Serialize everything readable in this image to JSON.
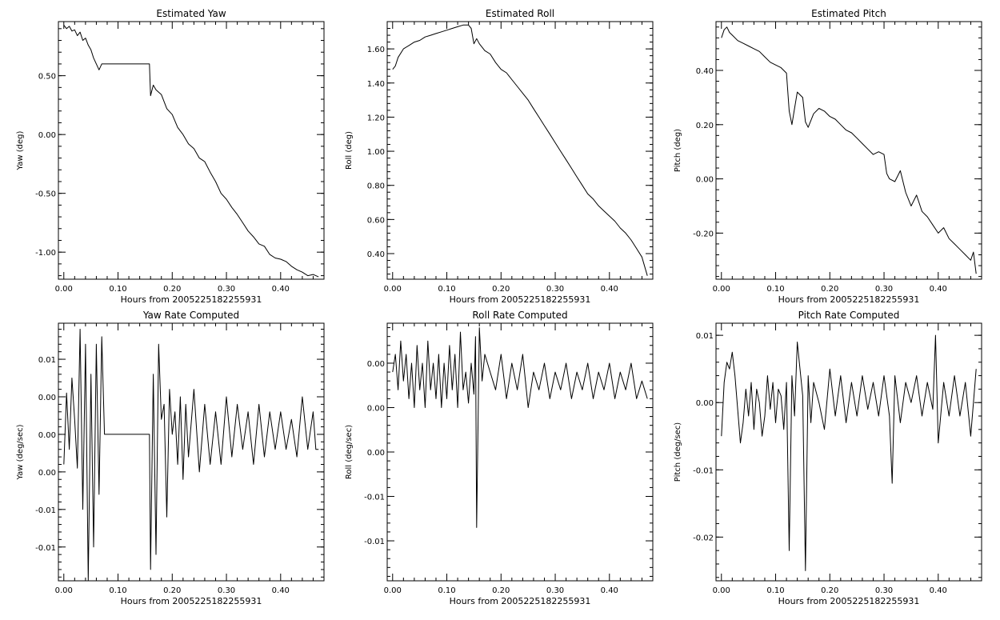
{
  "figure": {
    "background": "#ffffff",
    "line_color": "#000000"
  },
  "chart_data": [
    {
      "type": "line",
      "title": "Estimated Yaw",
      "xlabel": "Hours from 2005225182255931",
      "ylabel": "Yaw (deg)",
      "xlim": [
        -0.01,
        0.48
      ],
      "ylim": [
        -1.23,
        0.96
      ],
      "xticks": [
        0.0,
        0.1,
        0.2,
        0.3,
        0.4
      ],
      "xtick_labels": [
        "0.00",
        "0.10",
        "0.20",
        "0.30",
        "0.40"
      ],
      "yticks": [
        0.5,
        0.0,
        -0.5,
        -1.0
      ],
      "ytick_labels": [
        "0.50",
        "0.00",
        "-0.50",
        "-1.00"
      ],
      "grid": false,
      "x": [
        0.0,
        0.005,
        0.01,
        0.015,
        0.02,
        0.025,
        0.03,
        0.035,
        0.04,
        0.045,
        0.05,
        0.055,
        0.06,
        0.065,
        0.07,
        0.08,
        0.1,
        0.12,
        0.14,
        0.158,
        0.16,
        0.165,
        0.17,
        0.18,
        0.19,
        0.2,
        0.21,
        0.22,
        0.23,
        0.24,
        0.25,
        0.26,
        0.27,
        0.28,
        0.29,
        0.3,
        0.31,
        0.32,
        0.33,
        0.34,
        0.35,
        0.36,
        0.37,
        0.38,
        0.39,
        0.4,
        0.41,
        0.42,
        0.43,
        0.44,
        0.45,
        0.46,
        0.47
      ],
      "y": [
        0.93,
        0.9,
        0.92,
        0.88,
        0.89,
        0.84,
        0.87,
        0.8,
        0.82,
        0.76,
        0.72,
        0.65,
        0.6,
        0.55,
        0.6,
        0.6,
        0.6,
        0.6,
        0.6,
        0.6,
        0.33,
        0.42,
        0.38,
        0.34,
        0.22,
        0.17,
        0.06,
        0.0,
        -0.08,
        -0.12,
        -0.2,
        -0.23,
        -0.32,
        -0.4,
        -0.5,
        -0.55,
        -0.62,
        -0.68,
        -0.75,
        -0.82,
        -0.87,
        -0.93,
        -0.95,
        -1.02,
        -1.05,
        -1.06,
        -1.08,
        -1.12,
        -1.15,
        -1.17,
        -1.2,
        -1.19,
        -1.21
      ]
    },
    {
      "type": "line",
      "title": "Estimated Roll",
      "xlabel": "Hours from 2005225182255931",
      "ylabel": "Roll (deg)",
      "xlim": [
        -0.01,
        0.48
      ],
      "ylim": [
        0.25,
        1.76
      ],
      "xticks": [
        0.0,
        0.1,
        0.2,
        0.3,
        0.4
      ],
      "xtick_labels": [
        "0.00",
        "0.10",
        "0.20",
        "0.30",
        "0.40"
      ],
      "yticks": [
        1.6,
        1.4,
        1.2,
        1.0,
        0.8,
        0.6,
        0.4
      ],
      "ytick_labels": [
        "1.60",
        "1.40",
        "1.20",
        "1.00",
        "0.80",
        "0.60",
        "0.40"
      ],
      "grid": false,
      "x": [
        0.0,
        0.005,
        0.01,
        0.02,
        0.03,
        0.04,
        0.05,
        0.06,
        0.07,
        0.08,
        0.09,
        0.1,
        0.11,
        0.12,
        0.13,
        0.14,
        0.145,
        0.15,
        0.155,
        0.16,
        0.17,
        0.18,
        0.19,
        0.2,
        0.21,
        0.22,
        0.23,
        0.24,
        0.25,
        0.26,
        0.27,
        0.28,
        0.29,
        0.3,
        0.31,
        0.32,
        0.33,
        0.34,
        0.35,
        0.36,
        0.37,
        0.38,
        0.39,
        0.4,
        0.41,
        0.42,
        0.43,
        0.44,
        0.45,
        0.46,
        0.47
      ],
      "y": [
        1.48,
        1.5,
        1.55,
        1.6,
        1.62,
        1.64,
        1.65,
        1.67,
        1.68,
        1.69,
        1.7,
        1.71,
        1.72,
        1.73,
        1.74,
        1.74,
        1.72,
        1.63,
        1.66,
        1.63,
        1.59,
        1.57,
        1.52,
        1.48,
        1.46,
        1.42,
        1.38,
        1.34,
        1.3,
        1.25,
        1.2,
        1.15,
        1.1,
        1.05,
        1.0,
        0.95,
        0.9,
        0.85,
        0.8,
        0.75,
        0.72,
        0.68,
        0.65,
        0.62,
        0.59,
        0.55,
        0.52,
        0.48,
        0.43,
        0.38,
        0.27
      ]
    },
    {
      "type": "line",
      "title": "Estimated Pitch",
      "xlabel": "Hours from 2005225182255931",
      "ylabel": "Pitch (deg)",
      "xlim": [
        -0.01,
        0.48
      ],
      "ylim": [
        -0.37,
        0.58
      ],
      "xticks": [
        0.0,
        0.1,
        0.2,
        0.3,
        0.4
      ],
      "xtick_labels": [
        "0.00",
        "0.10",
        "0.20",
        "0.30",
        "0.40"
      ],
      "yticks": [
        0.4,
        0.2,
        0.0,
        -0.2
      ],
      "ytick_labels": [
        "0.40",
        "0.20",
        "0.00",
        "-0.20"
      ],
      "grid": false,
      "x": [
        0.0,
        0.005,
        0.01,
        0.015,
        0.02,
        0.03,
        0.04,
        0.05,
        0.06,
        0.07,
        0.08,
        0.09,
        0.1,
        0.11,
        0.12,
        0.125,
        0.13,
        0.135,
        0.14,
        0.145,
        0.15,
        0.155,
        0.16,
        0.17,
        0.18,
        0.19,
        0.2,
        0.21,
        0.22,
        0.23,
        0.24,
        0.25,
        0.26,
        0.27,
        0.28,
        0.29,
        0.3,
        0.305,
        0.31,
        0.32,
        0.33,
        0.34,
        0.35,
        0.36,
        0.37,
        0.38,
        0.39,
        0.4,
        0.41,
        0.42,
        0.43,
        0.44,
        0.45,
        0.46,
        0.465,
        0.47
      ],
      "y": [
        0.52,
        0.55,
        0.56,
        0.54,
        0.53,
        0.51,
        0.5,
        0.49,
        0.48,
        0.47,
        0.45,
        0.43,
        0.42,
        0.41,
        0.39,
        0.25,
        0.2,
        0.26,
        0.32,
        0.31,
        0.3,
        0.21,
        0.19,
        0.24,
        0.26,
        0.25,
        0.23,
        0.22,
        0.2,
        0.18,
        0.17,
        0.15,
        0.13,
        0.11,
        0.09,
        0.1,
        0.09,
        0.02,
        0.0,
        -0.01,
        0.03,
        -0.05,
        -0.1,
        -0.06,
        -0.12,
        -0.14,
        -0.17,
        -0.2,
        -0.18,
        -0.22,
        -0.24,
        -0.26,
        -0.28,
        -0.3,
        -0.27,
        -0.35
      ]
    },
    {
      "type": "line",
      "title": "Yaw Rate Computed",
      "xlabel": "Hours from 2005225182255931",
      "ylabel": "Yaw (deg/sec)",
      "xlim": [
        -0.01,
        0.48
      ],
      "ylim": [
        -0.0195,
        0.0148
      ],
      "xticks": [
        0.0,
        0.1,
        0.2,
        0.3,
        0.4
      ],
      "xtick_labels": [
        "0.00",
        "0.10",
        "0.20",
        "0.30",
        "0.40"
      ],
      "yticks": [
        0.01,
        0.005,
        0.0,
        -0.005,
        -0.01,
        -0.015
      ],
      "ytick_labels": [
        "0.01",
        "0.00",
        "0.00",
        "0.00",
        "-0.01",
        "-0.01"
      ],
      "grid": false,
      "x": [
        0.0,
        0.005,
        0.01,
        0.015,
        0.02,
        0.025,
        0.03,
        0.035,
        0.04,
        0.045,
        0.05,
        0.055,
        0.06,
        0.065,
        0.07,
        0.075,
        0.1,
        0.13,
        0.158,
        0.16,
        0.165,
        0.17,
        0.175,
        0.18,
        0.185,
        0.19,
        0.195,
        0.2,
        0.205,
        0.21,
        0.215,
        0.22,
        0.225,
        0.23,
        0.24,
        0.25,
        0.26,
        0.27,
        0.28,
        0.29,
        0.3,
        0.31,
        0.32,
        0.33,
        0.34,
        0.35,
        0.36,
        0.37,
        0.38,
        0.39,
        0.4,
        0.41,
        0.42,
        0.43,
        0.44,
        0.45,
        0.46,
        0.465,
        0.47
      ],
      "y": [
        -0.004,
        0.0055,
        -0.002,
        0.0075,
        0.002,
        -0.0045,
        0.014,
        -0.01,
        0.012,
        -0.0195,
        0.008,
        -0.015,
        0.012,
        -0.008,
        0.013,
        0.0,
        0.0,
        0.0,
        0.0,
        -0.018,
        0.008,
        -0.016,
        0.012,
        0.002,
        0.004,
        -0.011,
        0.006,
        0.0,
        0.003,
        -0.004,
        0.005,
        -0.006,
        0.004,
        -0.003,
        0.006,
        -0.005,
        0.004,
        -0.004,
        0.003,
        -0.004,
        0.005,
        -0.003,
        0.004,
        -0.002,
        0.003,
        -0.004,
        0.004,
        -0.003,
        0.003,
        -0.002,
        0.003,
        -0.002,
        0.002,
        -0.003,
        0.005,
        -0.002,
        0.003,
        -0.002,
        -0.002
      ]
    },
    {
      "type": "line",
      "title": "Roll Rate Computed",
      "xlabel": "Hours from 2005225182255931",
      "ylabel": "Roll (deg/sec)",
      "xlim": [
        -0.01,
        0.48
      ],
      "ylim": [
        -0.0195,
        0.0095
      ],
      "xticks": [
        0.0,
        0.1,
        0.2,
        0.3,
        0.4
      ],
      "xtick_labels": [
        "0.00",
        "0.10",
        "0.20",
        "0.30",
        "0.40"
      ],
      "yticks": [
        0.005,
        0.0,
        -0.005,
        -0.01,
        -0.015
      ],
      "ytick_labels": [
        "0.00",
        "0.00",
        "0.00",
        "-0.01",
        "-0.01"
      ],
      "grid": false,
      "x": [
        0.0,
        0.005,
        0.01,
        0.015,
        0.02,
        0.025,
        0.03,
        0.035,
        0.04,
        0.045,
        0.05,
        0.055,
        0.06,
        0.065,
        0.07,
        0.075,
        0.08,
        0.085,
        0.09,
        0.095,
        0.1,
        0.105,
        0.11,
        0.115,
        0.12,
        0.125,
        0.13,
        0.135,
        0.14,
        0.145,
        0.15,
        0.153,
        0.155,
        0.16,
        0.165,
        0.17,
        0.18,
        0.19,
        0.2,
        0.21,
        0.22,
        0.23,
        0.24,
        0.25,
        0.26,
        0.27,
        0.28,
        0.29,
        0.3,
        0.31,
        0.32,
        0.33,
        0.34,
        0.35,
        0.36,
        0.37,
        0.38,
        0.39,
        0.4,
        0.41,
        0.42,
        0.43,
        0.44,
        0.45,
        0.46,
        0.47
      ],
      "y": [
        0.004,
        0.006,
        0.002,
        0.0075,
        0.003,
        0.006,
        0.001,
        0.005,
        0.0,
        0.007,
        0.002,
        0.005,
        0.0,
        0.0075,
        0.002,
        0.005,
        0.001,
        0.006,
        0.0,
        0.005,
        0.001,
        0.007,
        0.002,
        0.006,
        0.0,
        0.0085,
        0.002,
        0.004,
        0.0005,
        0.005,
        0.0015,
        0.008,
        -0.0135,
        0.009,
        0.003,
        0.006,
        0.004,
        0.002,
        0.006,
        0.001,
        0.005,
        0.002,
        0.006,
        0.0,
        0.004,
        0.002,
        0.005,
        0.001,
        0.004,
        0.002,
        0.005,
        0.001,
        0.004,
        0.002,
        0.005,
        0.001,
        0.004,
        0.002,
        0.005,
        0.001,
        0.004,
        0.002,
        0.005,
        0.001,
        0.003,
        0.001
      ]
    },
    {
      "type": "line",
      "title": "Pitch Rate Computed",
      "xlabel": "Hours from 2005225182255931",
      "ylabel": "Pitch (deg/sec)",
      "xlim": [
        -0.01,
        0.48
      ],
      "ylim": [
        -0.0265,
        0.0118
      ],
      "xticks": [
        0.0,
        0.1,
        0.2,
        0.3,
        0.4
      ],
      "xtick_labels": [
        "0.00",
        "0.10",
        "0.20",
        "0.30",
        "0.40"
      ],
      "yticks": [
        0.01,
        0.0,
        -0.01,
        -0.02
      ],
      "ytick_labels": [
        "0.01",
        "0.00",
        "-0.01",
        "-0.02"
      ],
      "grid": false,
      "x": [
        0.0,
        0.005,
        0.01,
        0.015,
        0.02,
        0.025,
        0.03,
        0.035,
        0.04,
        0.045,
        0.05,
        0.055,
        0.06,
        0.065,
        0.07,
        0.075,
        0.08,
        0.085,
        0.09,
        0.095,
        0.1,
        0.105,
        0.11,
        0.115,
        0.12,
        0.125,
        0.13,
        0.135,
        0.14,
        0.145,
        0.15,
        0.155,
        0.16,
        0.165,
        0.17,
        0.18,
        0.19,
        0.2,
        0.21,
        0.22,
        0.23,
        0.24,
        0.25,
        0.26,
        0.27,
        0.28,
        0.29,
        0.3,
        0.31,
        0.315,
        0.32,
        0.33,
        0.34,
        0.35,
        0.36,
        0.37,
        0.38,
        0.39,
        0.395,
        0.4,
        0.41,
        0.42,
        0.43,
        0.44,
        0.45,
        0.46,
        0.47
      ],
      "y": [
        -0.005,
        0.003,
        0.006,
        0.005,
        0.0075,
        0.004,
        -0.001,
        -0.006,
        -0.003,
        0.002,
        -0.002,
        0.003,
        -0.004,
        0.002,
        0.0,
        -0.005,
        -0.002,
        0.004,
        -0.001,
        0.003,
        -0.003,
        0.002,
        0.001,
        -0.004,
        0.003,
        -0.022,
        0.004,
        -0.002,
        0.009,
        0.005,
        0.001,
        -0.025,
        0.004,
        -0.003,
        0.003,
        0.0,
        -0.004,
        0.005,
        -0.002,
        0.004,
        -0.003,
        0.003,
        -0.002,
        0.004,
        -0.001,
        0.003,
        -0.002,
        0.004,
        -0.002,
        -0.012,
        0.004,
        -0.003,
        0.003,
        0.0,
        0.004,
        -0.002,
        0.003,
        -0.001,
        0.01,
        -0.006,
        0.003,
        -0.002,
        0.004,
        -0.002,
        0.003,
        -0.005,
        0.005
      ]
    }
  ]
}
